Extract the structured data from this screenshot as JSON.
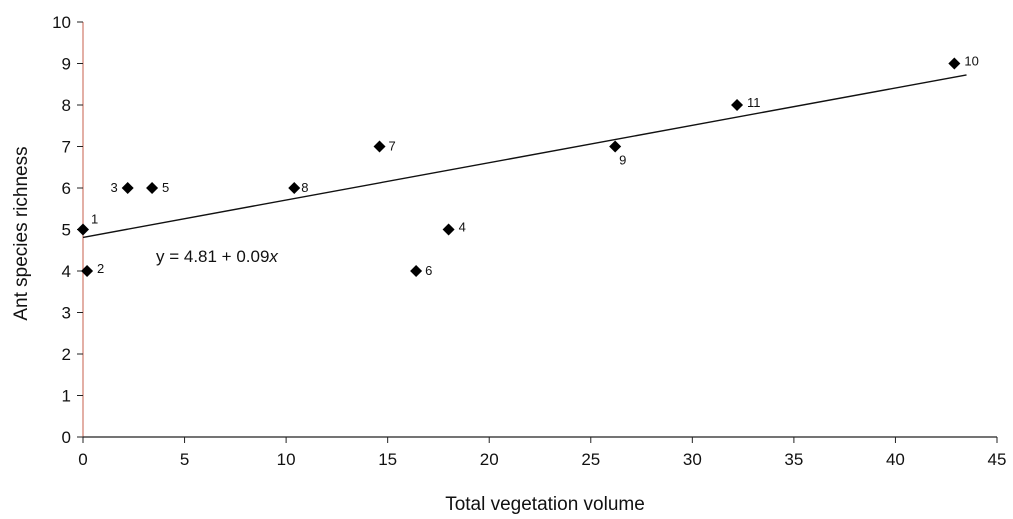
{
  "chart_data": {
    "type": "scatter",
    "title": "",
    "xlabel": "Total vegetation volume",
    "ylabel": "Ant species richness",
    "xlim": [
      0,
      45
    ],
    "ylim": [
      0,
      10
    ],
    "x_ticks": [
      0,
      5,
      10,
      15,
      20,
      25,
      30,
      35,
      40,
      45
    ],
    "y_ticks": [
      0,
      1,
      2,
      3,
      4,
      5,
      6,
      7,
      8,
      9,
      10
    ],
    "grid": false,
    "legend": "none",
    "marker": "diamond",
    "marker_color": "#000000",
    "points": [
      {
        "label": "1",
        "x": 0.0,
        "y": 5
      },
      {
        "label": "2",
        "x": 0.2,
        "y": 4
      },
      {
        "label": "3",
        "x": 2.2,
        "y": 6
      },
      {
        "label": "4",
        "x": 18.0,
        "y": 5
      },
      {
        "label": "5",
        "x": 3.4,
        "y": 6
      },
      {
        "label": "6",
        "x": 16.4,
        "y": 4
      },
      {
        "label": "7",
        "x": 14.6,
        "y": 7
      },
      {
        "label": "8",
        "x": 10.4,
        "y": 6
      },
      {
        "label": "9",
        "x": 26.2,
        "y": 7
      },
      {
        "label": "10",
        "x": 42.9,
        "y": 9
      },
      {
        "label": "11",
        "x": 32.2,
        "y": 8
      }
    ],
    "trendline": {
      "intercept": 4.81,
      "slope": 0.09,
      "x_range": [
        0,
        43.5
      ],
      "equation": "y = 4.81 + 0.09x"
    }
  }
}
